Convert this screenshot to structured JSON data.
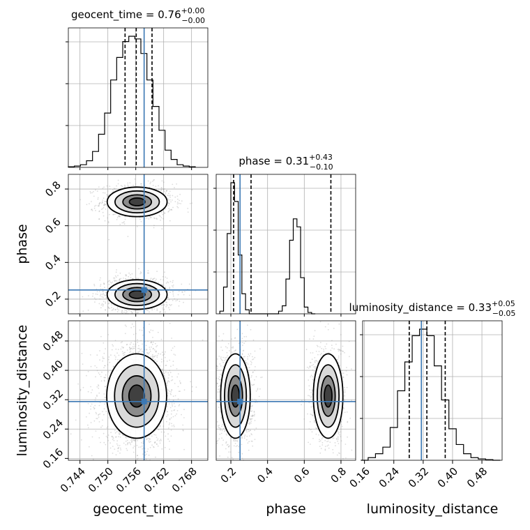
{
  "chart_data": {
    "type": "corner",
    "colors": {
      "truth": "#3b78b4",
      "line": "#000000",
      "grid": "#b0b0b0",
      "scatter": "#9a9a9a"
    },
    "parameters": [
      {
        "name": "geocent_time",
        "axis_label": "geocent_time",
        "range": [
          0.7415,
          0.7715
        ],
        "ticks": [
          0.744,
          0.75,
          0.756,
          0.762,
          0.768
        ],
        "tick_labels": [
          "0.744",
          "0.750",
          "0.756",
          "0.762",
          "0.768"
        ],
        "truth": 0.7578,
        "quantiles": [
          0.7537,
          0.7561,
          0.7595
        ],
        "title": {
          "prefix": "geocent_time = 0.76",
          "sup": "+0.00",
          "sub": "−0.00"
        },
        "histogram": {
          "bin_width": 0.0013,
          "edges_start": 0.7415,
          "counts": [
            0.005,
            0.01,
            0.02,
            0.05,
            0.12,
            0.25,
            0.41,
            0.66,
            0.83,
            0.95,
            0.99,
            0.97,
            0.86,
            0.66,
            0.46,
            0.28,
            0.13,
            0.06,
            0.02,
            0.01,
            0.005
          ]
        }
      },
      {
        "name": "phase",
        "axis_label": "phase",
        "range": [
          0.12,
          0.88
        ],
        "ticks": [
          0.2,
          0.4,
          0.6,
          0.8
        ],
        "tick_labels": [
          "0.2",
          "0.4",
          "0.6",
          "0.8"
        ],
        "truth": 0.25,
        "quantiles": [
          0.215,
          0.31,
          0.745
        ],
        "title": {
          "prefix": "phase = 0.31",
          "sup": "+0.43",
          "sub": "−0.10"
        },
        "histogram": {
          "bin_width": 0.02,
          "edges_start": 0.14,
          "counts": [
            0.02,
            0.2,
            0.6,
            0.98,
            0.84,
            0.44,
            0.15,
            0.03,
            0,
            0,
            0,
            0,
            0,
            0,
            0,
            0,
            0.02,
            0.06,
            0.26,
            0.55,
            0.71,
            0.65,
            0.27,
            0.05,
            0.01,
            0.0
          ]
        }
      },
      {
        "name": "luminosity_distance",
        "axis_label": "luminosity_distance",
        "range": [
          0.155,
          0.535
        ],
        "ticks": [
          0.16,
          0.24,
          0.32,
          0.4,
          0.48
        ],
        "tick_labels": [
          "0.16",
          "0.24",
          "0.32",
          "0.40",
          "0.48"
        ],
        "truth": 0.315,
        "quantiles": [
          0.282,
          0.33,
          0.38
        ],
        "title": {
          "prefix": "luminosity_distance = 0.33",
          "sup": "+0.05",
          "sub": "−0.05"
        },
        "histogram": {
          "bin_width": 0.02,
          "edges_start": 0.15,
          "counts": [
            0.0,
            0.02,
            0.05,
            0.1,
            0.25,
            0.53,
            0.75,
            0.95,
            1.0,
            0.95,
            0.72,
            0.46,
            0.24,
            0.12,
            0.05,
            0.02,
            0.01,
            0.005,
            0.0
          ]
        }
      }
    ],
    "modes_2d": {
      "geocent_time_vs_phase": [
        {
          "x": 0.7563,
          "y": 0.73,
          "sx": 0.0028,
          "sy": 0.035,
          "weight": 0.45
        },
        {
          "x": 0.7563,
          "y": 0.225,
          "sx": 0.0028,
          "sy": 0.035,
          "weight": 0.55
        }
      ],
      "geocent_time_vs_luminosity_distance": [
        {
          "x": 0.7562,
          "y": 0.33,
          "sx": 0.0028,
          "sy": 0.05,
          "weight": 1.0
        }
      ],
      "phase_vs_luminosity_distance": [
        {
          "x": 0.225,
          "y": 0.33,
          "sx": 0.035,
          "sy": 0.05,
          "weight": 0.55
        },
        {
          "x": 0.73,
          "y": 0.33,
          "sx": 0.035,
          "sy": 0.05,
          "weight": 0.45
        }
      ]
    }
  }
}
